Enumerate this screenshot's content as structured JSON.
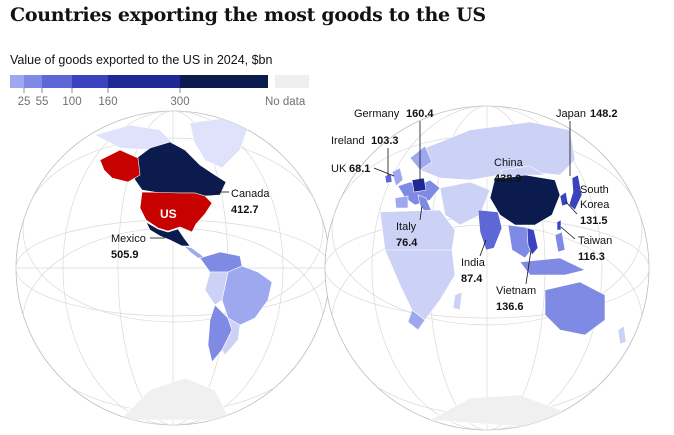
{
  "title": "Countries exporting the most goods to the US",
  "subtitle": "Value of goods exported to the US in 2024, $bn",
  "legend": {
    "ticks": [
      "25",
      "55",
      "100",
      "160",
      "300"
    ],
    "colors": [
      "#9ea8ef",
      "#7f8ae4",
      "#5d67d6",
      "#3a43bd",
      "#1f2893",
      "#0c1b4d"
    ],
    "no_data_label": "No data",
    "no_data_color": "#efefef"
  },
  "colors": {
    "us": "#c70000",
    "us_neighbor": "#c70000",
    "lowest": "#ccd1f6",
    "land_light": "#dfe2fa",
    "graticule": "#d6d6d6",
    "antarctica": "#f0f0f0"
  },
  "map_data": {
    "us_label": "US",
    "countries": [
      {
        "name": "Canada",
        "value": "412.7"
      },
      {
        "name": "Mexico",
        "value": "505.9"
      },
      {
        "name": "Germany",
        "value": "160.4"
      },
      {
        "name": "Ireland",
        "value": "103.3"
      },
      {
        "name": "UK",
        "value": "68.1"
      },
      {
        "name": "Italy",
        "value": "76.4"
      },
      {
        "name": "China",
        "value": "438.9"
      },
      {
        "name": "India",
        "value": "87.4"
      },
      {
        "name": "Vietnam",
        "value": "136.6"
      },
      {
        "name": "Japan",
        "value": "148.2"
      },
      {
        "name": "South Korea",
        "name_line1": "South",
        "name_line2": "Korea",
        "value": "131.5"
      },
      {
        "name": "Taiwan",
        "value": "116.3"
      }
    ]
  }
}
